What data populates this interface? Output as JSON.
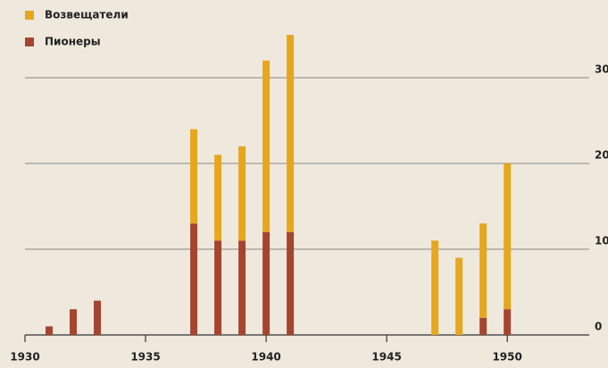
{
  "chart_data": {
    "type": "bar",
    "stacked": true,
    "x": [
      1931,
      1932,
      1933,
      1937,
      1938,
      1939,
      1940,
      1941,
      1947,
      1948,
      1949,
      1950
    ],
    "series": [
      {
        "name": "Возвещатели",
        "color": "#e6a61e",
        "values": [
          0,
          0,
          0,
          11,
          10,
          11,
          20,
          23,
          11,
          9,
          11,
          17
        ]
      },
      {
        "name": "Пионеры",
        "color": "#a5452f",
        "values": [
          1,
          3,
          4,
          13,
          11,
          11,
          12,
          12,
          0,
          0,
          2,
          3
        ]
      }
    ],
    "xlim": [
      1930,
      1953.4
    ],
    "xticks": [
      1930,
      1935,
      1940,
      1945,
      1950
    ],
    "ylim": [
      0,
      36
    ],
    "yticks": [
      0,
      10,
      20,
      30
    ],
    "grid": true,
    "legend": "top-left"
  }
}
